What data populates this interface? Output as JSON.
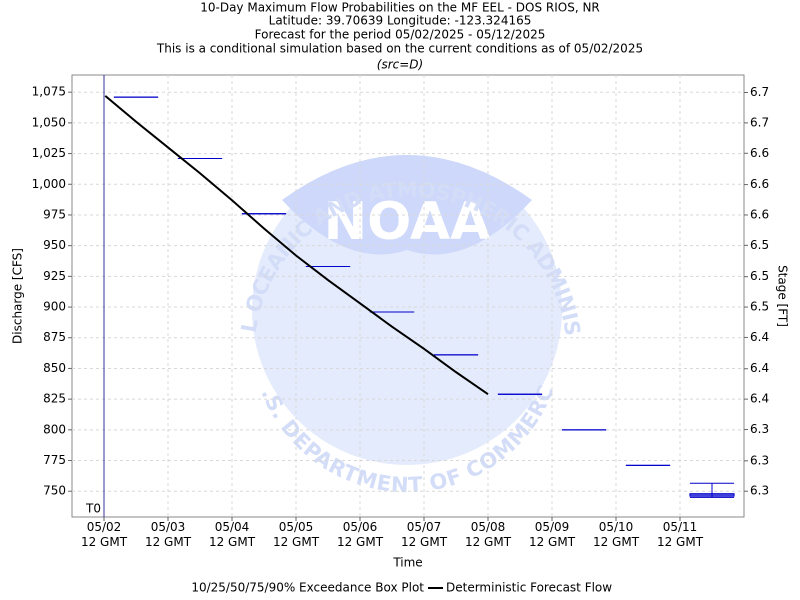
{
  "chart_data": {
    "type": "box",
    "title": "10-Day Maximum Flow Probabilities on the MF EEL - DOS RIOS, NR",
    "subtitles": [
      "Latitude: 39.70639 Longitude: -123.324165",
      "Forecast for the period 05/02/2025 - 05/12/2025",
      "This is a conditional simulation based on the current conditions as of 05/02/2025",
      "(src=D)"
    ],
    "xlabel": "Time",
    "ylabel": "Discharge [CFS]",
    "y2label": "Stage [FT]",
    "xlim": [
      -0.5,
      10
    ],
    "xticks": [
      {
        "value": 0,
        "label": "05/02\n12 GMT"
      },
      {
        "value": 1,
        "label": "05/03\n12 GMT"
      },
      {
        "value": 2,
        "label": "05/04\n12 GMT"
      },
      {
        "value": 3,
        "label": "05/05\n12 GMT"
      },
      {
        "value": 4,
        "label": "05/06\n12 GMT"
      },
      {
        "value": 5,
        "label": "05/07\n12 GMT"
      },
      {
        "value": 6,
        "label": "05/08\n12 GMT"
      },
      {
        "value": 7,
        "label": "05/09\n12 GMT"
      },
      {
        "value": 8,
        "label": "05/10\n12 GMT"
      },
      {
        "value": 9,
        "label": "05/11\n12 GMT"
      }
    ],
    "ylim": [
      729,
      1089
    ],
    "yticks": [
      {
        "value": 1075,
        "label": "1,075"
      },
      {
        "value": 1050,
        "label": "1,050"
      },
      {
        "value": 1025,
        "label": "1,025"
      },
      {
        "value": 1000,
        "label": "1,000"
      },
      975,
      950,
      925,
      900,
      875,
      850,
      825,
      800,
      775,
      750
    ],
    "y2lim": [
      6.232,
      6.712
    ],
    "y2ticks": [
      {
        "value": 6.693,
        "label": "6.7"
      },
      {
        "value": 6.66,
        "label": "6.7"
      },
      {
        "value": 6.627,
        "label": "6.6"
      },
      {
        "value": 6.593,
        "label": "6.6"
      },
      {
        "value": 6.56,
        "label": "6.6"
      },
      {
        "value": 6.527,
        "label": "6.5"
      },
      {
        "value": 6.493,
        "label": "6.5"
      },
      {
        "value": 6.46,
        "label": "6.5"
      },
      {
        "value": 6.427,
        "label": "6.4"
      },
      {
        "value": 6.393,
        "label": "6.4"
      },
      {
        "value": 6.36,
        "label": "6.4"
      },
      {
        "value": 6.327,
        "label": "6.3"
      },
      {
        "value": 6.293,
        "label": "6.3"
      },
      {
        "value": 6.26,
        "label": "6.3"
      }
    ],
    "grid": true,
    "t0": {
      "x": 0,
      "label": "T0"
    },
    "boxes": {
      "name": "10/25/50/75/90% Exceedance Box Plot",
      "color": "#0000cc",
      "x": [
        0.5,
        1.5,
        2.5,
        3.5,
        4.5,
        5.5,
        6.5,
        7.5,
        8.5,
        9.5
      ],
      "p10": [
        1071,
        1021,
        976,
        933,
        896,
        861,
        829,
        800,
        771,
        745
      ],
      "p25": [
        1071,
        1021,
        976,
        933,
        896,
        861,
        829,
        800,
        771,
        746
      ],
      "p50": [
        1071,
        1021,
        976,
        933,
        896,
        861,
        829,
        800,
        771,
        747
      ],
      "p75": [
        1071,
        1021,
        976,
        933,
        896,
        861,
        829,
        800,
        771,
        748
      ],
      "p90": [
        1071,
        1021,
        976,
        933,
        896,
        861,
        829,
        800,
        771,
        756.5
      ]
    },
    "series": [
      {
        "name": "Deterministic Forecast Flow",
        "type": "line",
        "color": "#000000",
        "x": [
          0.02,
          0.5,
          1,
          1.5,
          2,
          2.5,
          3,
          3.5,
          4,
          4.5,
          5,
          5.5,
          6
        ],
        "values": [
          1072,
          1051,
          1030,
          1009,
          987,
          964,
          942,
          922,
          903,
          884,
          866,
          847,
          829
        ]
      }
    ],
    "watermark": {
      "center": "NOAA",
      "top": "NATIONAL OCEANIC AND ATMOSPHERIC ADMINISTRATION",
      "bottom": "U.S. DEPARTMENT OF COMMERCE"
    }
  }
}
